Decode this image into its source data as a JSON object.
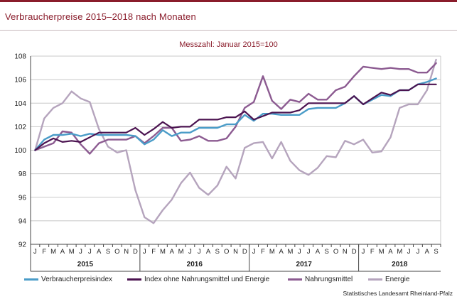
{
  "header": {
    "title": "Verbraucherpreise 2015–2018 nach Monaten"
  },
  "chart_data": {
    "type": "line",
    "subtitle": "Messzahl: Januar 2015=100",
    "ylim": [
      92,
      108
    ],
    "yticks": [
      92,
      94,
      96,
      98,
      100,
      102,
      104,
      106,
      108
    ],
    "month_labels": [
      "J",
      "F",
      "M",
      "A",
      "M",
      "J",
      "J",
      "A",
      "S",
      "O",
      "N",
      "D",
      "J",
      "F",
      "M",
      "A",
      "M",
      "J",
      "J",
      "A",
      "S",
      "O",
      "N",
      "D",
      "J",
      "F",
      "M",
      "A",
      "M",
      "J",
      "J",
      "A",
      "S",
      "O",
      "N",
      "D",
      "J",
      "F",
      "M",
      "A",
      "M",
      "J",
      "J",
      "A",
      "S"
    ],
    "years": [
      {
        "label": "2015",
        "start": 0,
        "count": 12
      },
      {
        "label": "2016",
        "start": 12,
        "count": 12
      },
      {
        "label": "2017",
        "start": 24,
        "count": 12
      },
      {
        "label": "2018",
        "start": 36,
        "count": 9
      }
    ],
    "grid": true,
    "legend_position": "bottom",
    "series": [
      {
        "name": "Verbraucherpreisindex",
        "color": "#4a9cc8",
        "values": [
          100.0,
          100.9,
          101.3,
          101.3,
          101.4,
          101.2,
          101.4,
          101.3,
          101.3,
          101.3,
          101.3,
          101.2,
          100.5,
          100.9,
          101.7,
          101.2,
          101.5,
          101.5,
          101.9,
          101.9,
          101.9,
          102.2,
          102.2,
          103.0,
          102.5,
          103.1,
          103.1,
          103.0,
          103.0,
          103.0,
          103.5,
          103.6,
          103.6,
          103.6,
          104.0,
          104.6,
          103.9,
          104.3,
          104.7,
          104.6,
          105.1,
          105.1,
          105.6,
          105.8,
          106.1
        ]
      },
      {
        "name": "Index ohne Nahrungsmittel und Energie",
        "color": "#4b1350",
        "values": [
          100.0,
          100.6,
          101.0,
          100.7,
          100.8,
          100.7,
          101.1,
          101.5,
          101.5,
          101.5,
          101.5,
          101.9,
          101.3,
          101.8,
          102.4,
          101.9,
          102.0,
          102.0,
          102.6,
          102.6,
          102.6,
          102.8,
          102.8,
          103.3,
          102.6,
          102.9,
          103.2,
          103.2,
          103.2,
          103.4,
          104.0,
          104.0,
          104.0,
          104.0,
          104.0,
          104.6,
          103.9,
          104.4,
          104.9,
          104.7,
          105.1,
          105.1,
          105.6,
          105.6,
          105.6
        ]
      },
      {
        "name": "Nahrungsmittel",
        "color": "#8c5b91",
        "values": [
          100.0,
          100.3,
          100.6,
          101.6,
          101.5,
          100.5,
          99.7,
          100.6,
          100.9,
          100.9,
          100.9,
          101.2,
          100.6,
          101.2,
          101.9,
          101.9,
          100.8,
          100.9,
          101.2,
          100.8,
          100.8,
          101.0,
          102.0,
          103.6,
          104.1,
          106.3,
          104.2,
          103.5,
          104.3,
          104.1,
          104.8,
          104.3,
          104.3,
          105.1,
          105.4,
          106.3,
          107.1,
          107.0,
          106.9,
          107.0,
          106.9,
          106.9,
          106.6,
          106.6,
          107.4
        ]
      },
      {
        "name": "Energie",
        "color": "#b5a4bd",
        "values": [
          100.0,
          102.7,
          103.6,
          104.0,
          105.0,
          104.4,
          104.1,
          101.8,
          100.3,
          99.8,
          100.0,
          96.6,
          94.3,
          93.8,
          94.9,
          95.8,
          97.2,
          98.1,
          96.8,
          96.2,
          97.0,
          98.6,
          97.6,
          100.2,
          100.6,
          100.7,
          99.3,
          100.7,
          99.1,
          98.3,
          97.9,
          98.5,
          99.5,
          99.4,
          100.8,
          100.5,
          100.9,
          99.8,
          99.9,
          101.1,
          103.6,
          103.9,
          103.9,
          105.1,
          107.7
        ]
      }
    ]
  },
  "footer": {
    "source": "Statistisches Landesamt Rheinland-Pfalz"
  }
}
